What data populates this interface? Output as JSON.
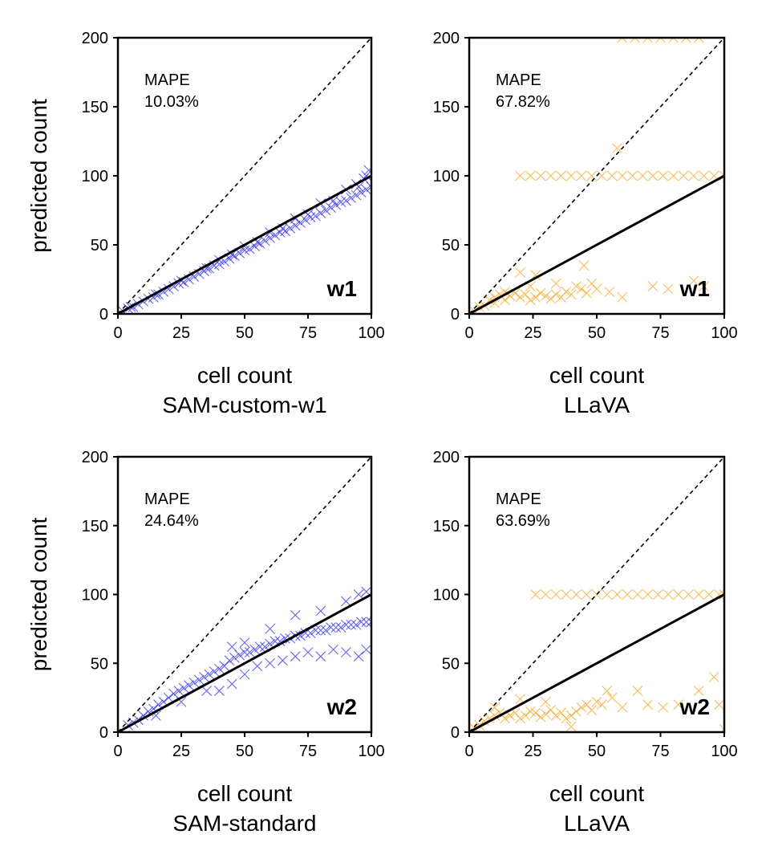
{
  "chart_data": [
    {
      "type": "scatter",
      "xlabel": "cell count",
      "method": "SAM-custom-w1",
      "ylabel": "predicted count",
      "tag": "w1",
      "mape_label": "MAPE",
      "mape_value": "10.03%",
      "xlim": [
        0,
        100
      ],
      "ylim": [
        0,
        200
      ],
      "xticks": [
        "0",
        "25",
        "50",
        "75",
        "100"
      ],
      "yticks": [
        "0",
        "50",
        "100",
        "150",
        "200"
      ],
      "marker_color": "#3333ee",
      "reference_lines": {
        "identity": "y = x (dashed)",
        "fit": "y = x (solid)"
      },
      "points": [
        [
          2,
          2
        ],
        [
          4,
          4
        ],
        [
          6,
          5
        ],
        [
          8,
          7
        ],
        [
          10,
          9
        ],
        [
          12,
          11
        ],
        [
          14,
          12
        ],
        [
          16,
          14
        ],
        [
          18,
          16
        ],
        [
          20,
          18
        ],
        [
          22,
          20
        ],
        [
          24,
          22
        ],
        [
          26,
          23
        ],
        [
          28,
          25
        ],
        [
          30,
          27
        ],
        [
          32,
          29
        ],
        [
          34,
          31
        ],
        [
          36,
          33
        ],
        [
          38,
          35
        ],
        [
          40,
          36
        ],
        [
          42,
          38
        ],
        [
          44,
          40
        ],
        [
          46,
          42
        ],
        [
          48,
          44
        ],
        [
          50,
          46
        ],
        [
          52,
          47
        ],
        [
          54,
          49
        ],
        [
          56,
          51
        ],
        [
          58,
          53
        ],
        [
          60,
          55
        ],
        [
          62,
          57
        ],
        [
          64,
          59
        ],
        [
          66,
          60
        ],
        [
          68,
          62
        ],
        [
          70,
          64
        ],
        [
          72,
          66
        ],
        [
          74,
          68
        ],
        [
          76,
          70
        ],
        [
          78,
          71
        ],
        [
          80,
          73
        ],
        [
          82,
          75
        ],
        [
          84,
          77
        ],
        [
          86,
          79
        ],
        [
          88,
          81
        ],
        [
          90,
          82
        ],
        [
          92,
          84
        ],
        [
          94,
          86
        ],
        [
          96,
          88
        ],
        [
          98,
          90
        ],
        [
          100,
          92
        ],
        [
          5,
          5
        ],
        [
          15,
          14
        ],
        [
          25,
          24
        ],
        [
          35,
          33
        ],
        [
          45,
          43
        ],
        [
          55,
          52
        ],
        [
          65,
          62
        ],
        [
          75,
          72
        ],
        [
          85,
          82
        ],
        [
          95,
          92
        ],
        [
          98,
          100
        ],
        [
          99,
          104
        ],
        [
          97,
          98
        ],
        [
          94,
          94
        ],
        [
          90,
          90
        ],
        [
          80,
          80
        ],
        [
          70,
          69
        ],
        [
          60,
          59
        ],
        [
          50,
          49
        ],
        [
          40,
          39
        ]
      ]
    },
    {
      "type": "scatter",
      "xlabel": "cell count",
      "method": "LLaVA",
      "ylabel": "",
      "tag": "w1",
      "mape_label": "MAPE",
      "mape_value": "67.82%",
      "xlim": [
        0,
        100
      ],
      "ylim": [
        0,
        200
      ],
      "xticks": [
        "0",
        "25",
        "50",
        "75",
        "100"
      ],
      "yticks": [
        "0",
        "50",
        "100",
        "150",
        "200"
      ],
      "marker_color": "#f5a623",
      "reference_lines": {
        "identity": "y = x (dashed)",
        "fit": "y = x (solid)"
      },
      "points": [
        [
          2,
          2
        ],
        [
          4,
          5
        ],
        [
          6,
          6
        ],
        [
          8,
          10
        ],
        [
          10,
          12
        ],
        [
          12,
          14
        ],
        [
          14,
          16
        ],
        [
          16,
          13
        ],
        [
          18,
          15
        ],
        [
          20,
          12
        ],
        [
          22,
          14
        ],
        [
          24,
          10
        ],
        [
          26,
          12
        ],
        [
          28,
          15
        ],
        [
          30,
          13
        ],
        [
          32,
          11
        ],
        [
          34,
          14
        ],
        [
          36,
          12
        ],
        [
          38,
          16
        ],
        [
          40,
          14
        ],
        [
          42,
          20
        ],
        [
          44,
          18
        ],
        [
          46,
          15
        ],
        [
          48,
          22
        ],
        [
          50,
          18
        ],
        [
          55,
          16
        ],
        [
          60,
          12
        ],
        [
          72,
          20
        ],
        [
          78,
          18
        ],
        [
          88,
          24
        ],
        [
          92,
          20
        ],
        [
          20,
          30
        ],
        [
          26,
          28
        ],
        [
          34,
          22
        ],
        [
          45,
          35
        ],
        [
          10,
          8
        ],
        [
          14,
          10
        ],
        [
          24,
          20
        ],
        [
          58,
          120
        ],
        [
          60,
          100
        ],
        [
          64,
          100
        ],
        [
          68,
          100
        ],
        [
          72,
          100
        ],
        [
          76,
          100
        ],
        [
          80,
          100
        ],
        [
          84,
          100
        ],
        [
          88,
          100
        ],
        [
          92,
          100
        ],
        [
          96,
          100
        ],
        [
          100,
          100
        ],
        [
          56,
          100
        ],
        [
          52,
          100
        ],
        [
          48,
          100
        ],
        [
          44,
          100
        ],
        [
          40,
          100
        ],
        [
          36,
          100
        ],
        [
          32,
          100
        ],
        [
          28,
          100
        ],
        [
          24,
          100
        ],
        [
          20,
          100
        ],
        [
          60,
          200
        ],
        [
          65,
          200
        ],
        [
          70,
          200
        ],
        [
          75,
          200
        ],
        [
          80,
          200
        ],
        [
          85,
          200
        ],
        [
          90,
          200
        ]
      ]
    },
    {
      "type": "scatter",
      "xlabel": "cell count",
      "method": "SAM-standard",
      "ylabel": "predicted count",
      "tag": "w2",
      "mape_label": "MAPE",
      "mape_value": "24.64%",
      "xlim": [
        0,
        100
      ],
      "ylim": [
        0,
        200
      ],
      "xticks": [
        "0",
        "25",
        "50",
        "75",
        "100"
      ],
      "yticks": [
        "0",
        "50",
        "100",
        "150",
        "200"
      ],
      "marker_color": "#3333ee",
      "reference_lines": {
        "identity": "y = x (dashed)",
        "fit": "y = x (solid)"
      },
      "points": [
        [
          4,
          5
        ],
        [
          6,
          7
        ],
        [
          8,
          9
        ],
        [
          10,
          12
        ],
        [
          12,
          15
        ],
        [
          14,
          17
        ],
        [
          16,
          20
        ],
        [
          18,
          22
        ],
        [
          20,
          25
        ],
        [
          22,
          28
        ],
        [
          24,
          30
        ],
        [
          26,
          32
        ],
        [
          28,
          34
        ],
        [
          30,
          36
        ],
        [
          32,
          38
        ],
        [
          34,
          40
        ],
        [
          36,
          42
        ],
        [
          38,
          44
        ],
        [
          40,
          46
        ],
        [
          42,
          48
        ],
        [
          44,
          52
        ],
        [
          46,
          54
        ],
        [
          48,
          56
        ],
        [
          50,
          58
        ],
        [
          52,
          58
        ],
        [
          54,
          60
        ],
        [
          56,
          62
        ],
        [
          58,
          62
        ],
        [
          60,
          64
        ],
        [
          62,
          66
        ],
        [
          64,
          66
        ],
        [
          66,
          68
        ],
        [
          68,
          68
        ],
        [
          70,
          70
        ],
        [
          72,
          70
        ],
        [
          74,
          72
        ],
        [
          76,
          72
        ],
        [
          78,
          74
        ],
        [
          80,
          74
        ],
        [
          82,
          74
        ],
        [
          84,
          76
        ],
        [
          86,
          76
        ],
        [
          88,
          76
        ],
        [
          90,
          78
        ],
        [
          92,
          78
        ],
        [
          94,
          78
        ],
        [
          96,
          80
        ],
        [
          98,
          80
        ],
        [
          100,
          80
        ],
        [
          40,
          30
        ],
        [
          45,
          35
        ],
        [
          50,
          42
        ],
        [
          55,
          48
        ],
        [
          60,
          50
        ],
        [
          65,
          52
        ],
        [
          70,
          55
        ],
        [
          75,
          58
        ],
        [
          80,
          55
        ],
        [
          85,
          60
        ],
        [
          90,
          58
        ],
        [
          95,
          55
        ],
        [
          98,
          60
        ],
        [
          45,
          62
        ],
        [
          50,
          65
        ],
        [
          60,
          75
        ],
        [
          70,
          85
        ],
        [
          80,
          88
        ],
        [
          90,
          95
        ],
        [
          95,
          100
        ],
        [
          98,
          102
        ],
        [
          35,
          30
        ],
        [
          25,
          22
        ],
        [
          15,
          12
        ]
      ]
    },
    {
      "type": "scatter",
      "xlabel": "cell count",
      "method": "LLaVA",
      "ylabel": "",
      "tag": "w2",
      "mape_label": "MAPE",
      "mape_value": "63.69%",
      "xlim": [
        0,
        100
      ],
      "ylim": [
        0,
        200
      ],
      "xticks": [
        "0",
        "25",
        "50",
        "75",
        "100"
      ],
      "yticks": [
        "0",
        "50",
        "100",
        "150",
        "200"
      ],
      "marker_color": "#f5a623",
      "reference_lines": {
        "identity": "y = x (dashed)",
        "fit": "y = x (solid)"
      },
      "points": [
        [
          2,
          3
        ],
        [
          4,
          5
        ],
        [
          6,
          8
        ],
        [
          8,
          10
        ],
        [
          10,
          12
        ],
        [
          12,
          14
        ],
        [
          14,
          10
        ],
        [
          16,
          12
        ],
        [
          18,
          14
        ],
        [
          20,
          10
        ],
        [
          22,
          12
        ],
        [
          24,
          15
        ],
        [
          26,
          14
        ],
        [
          28,
          11
        ],
        [
          30,
          13
        ],
        [
          32,
          16
        ],
        [
          34,
          12
        ],
        [
          36,
          14
        ],
        [
          38,
          10
        ],
        [
          40,
          12
        ],
        [
          42,
          15
        ],
        [
          44,
          18
        ],
        [
          46,
          20
        ],
        [
          48,
          16
        ],
        [
          50,
          22
        ],
        [
          52,
          20
        ],
        [
          54,
          30
        ],
        [
          56,
          25
        ],
        [
          60,
          18
        ],
        [
          66,
          30
        ],
        [
          70,
          20
        ],
        [
          76,
          18
        ],
        [
          82,
          20
        ],
        [
          90,
          30
        ],
        [
          96,
          40
        ],
        [
          98,
          20
        ],
        [
          100,
          2
        ],
        [
          26,
          100
        ],
        [
          30,
          100
        ],
        [
          34,
          100
        ],
        [
          38,
          100
        ],
        [
          42,
          100
        ],
        [
          46,
          100
        ],
        [
          50,
          100
        ],
        [
          54,
          100
        ],
        [
          58,
          100
        ],
        [
          62,
          100
        ],
        [
          66,
          100
        ],
        [
          70,
          100
        ],
        [
          74,
          100
        ],
        [
          78,
          100
        ],
        [
          82,
          100
        ],
        [
          86,
          100
        ],
        [
          90,
          100
        ],
        [
          94,
          100
        ],
        [
          98,
          100
        ],
        [
          100,
          100
        ],
        [
          10,
          18
        ],
        [
          20,
          24
        ],
        [
          30,
          22
        ],
        [
          40,
          4
        ]
      ]
    }
  ]
}
